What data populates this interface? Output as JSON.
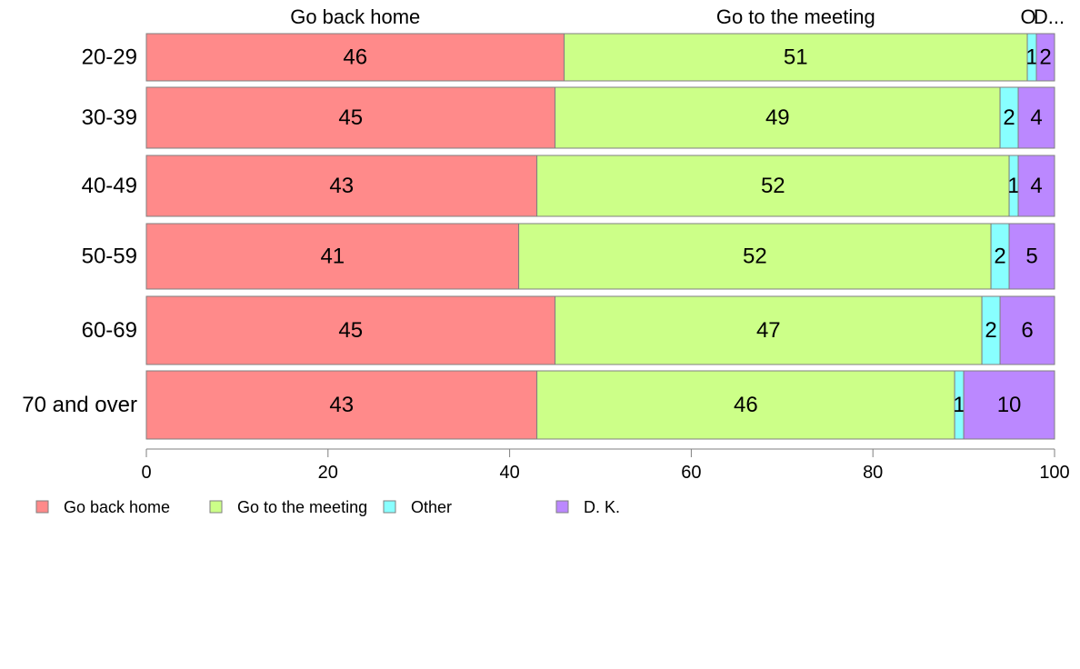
{
  "chart_data": {
    "type": "bar",
    "orientation": "horizontal",
    "stacked": true,
    "categories": [
      "20-29",
      "30-39",
      "40-49",
      "50-59",
      "60-69",
      "70 and over"
    ],
    "series": [
      {
        "name": "Go back home",
        "color": "#ff8a8a",
        "values": [
          46,
          45,
          43,
          41,
          45,
          43
        ]
      },
      {
        "name": "Go to the meeting",
        "color": "#ccff88",
        "values": [
          51,
          49,
          52,
          52,
          47,
          46
        ]
      },
      {
        "name": "Other",
        "color": "#88ffff",
        "values": [
          1,
          2,
          1,
          2,
          2,
          1
        ]
      },
      {
        "name": "D. K.",
        "color": "#bb88ff",
        "values": [
          2,
          4,
          4,
          5,
          6,
          10
        ]
      }
    ],
    "top_labels": [
      "Go back home",
      "Go to the meeting",
      "O",
      "D..."
    ],
    "xlim": [
      0,
      100
    ],
    "xticks": [
      0,
      20,
      40,
      60,
      80,
      100
    ],
    "legend_position": "bottom"
  }
}
